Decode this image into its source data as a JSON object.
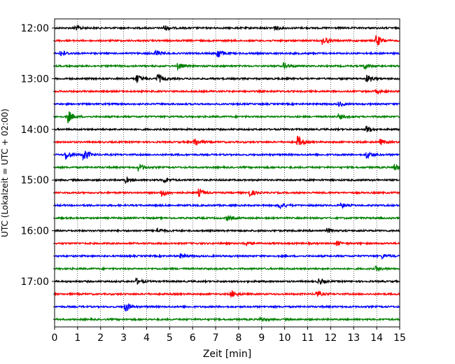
{
  "chart_data": {
    "type": "line",
    "subtype": "seismic-helicorder",
    "xlabel": "Zeit  [min]",
    "ylabel": "UTC (Lokalzeit = UTC + 02:00)",
    "xlim": [
      0,
      15
    ],
    "x_ticks": [
      "0",
      "1",
      "2",
      "3",
      "4",
      "5",
      "6",
      "7",
      "8",
      "9",
      "10",
      "11",
      "12",
      "13",
      "14",
      "15"
    ],
    "y_ticks": [
      {
        "label": "12:00",
        "row": 0
      },
      {
        "label": "13:00",
        "row": 4
      },
      {
        "label": "14:00",
        "row": 8
      },
      {
        "label": "15:00",
        "row": 12
      },
      {
        "label": "16:00",
        "row": 16
      },
      {
        "label": "17:00",
        "row": 20
      }
    ],
    "grid": {
      "vertical_dotted": true
    },
    "row_minutes": 15,
    "row_colors": [
      "#000000",
      "#ff0000",
      "#0000ff",
      "#008000"
    ],
    "series": [
      {
        "start": "12:00",
        "events": [
          {
            "t": 0.9,
            "a": 0.35
          },
          {
            "t": 4.8,
            "a": 0.35
          },
          {
            "t": 9.6,
            "a": 0.3
          }
        ]
      },
      {
        "start": "12:15",
        "events": [
          {
            "t": 11.7,
            "a": 0.5
          },
          {
            "t": 14.0,
            "a": 0.9
          }
        ]
      },
      {
        "start": "12:30",
        "events": [
          {
            "t": 0.3,
            "a": 0.45
          },
          {
            "t": 4.4,
            "a": 0.5
          },
          {
            "t": 7.1,
            "a": 0.75
          }
        ]
      },
      {
        "start": "12:45",
        "events": [
          {
            "t": 5.4,
            "a": 0.45
          },
          {
            "t": 10.0,
            "a": 0.45
          },
          {
            "t": 13.5,
            "a": 0.35
          }
        ]
      },
      {
        "start": "13:00",
        "events": [
          {
            "t": 3.6,
            "a": 0.6
          },
          {
            "t": 4.5,
            "a": 0.7
          },
          {
            "t": 13.6,
            "a": 0.5
          }
        ]
      },
      {
        "start": "13:15",
        "events": [
          {
            "t": 14.0,
            "a": 0.25
          }
        ]
      },
      {
        "start": "13:30",
        "events": [
          {
            "t": 12.4,
            "a": 0.3
          }
        ]
      },
      {
        "start": "13:45",
        "events": [
          {
            "t": 0.6,
            "a": 0.9
          },
          {
            "t": 12.4,
            "a": 0.3
          }
        ]
      },
      {
        "start": "14:00",
        "events": [
          {
            "t": 13.6,
            "a": 0.5
          }
        ]
      },
      {
        "start": "14:15",
        "events": [
          {
            "t": 6.1,
            "a": 0.6
          },
          {
            "t": 10.6,
            "a": 0.8
          },
          {
            "t": 14.2,
            "a": 0.35
          }
        ]
      },
      {
        "start": "14:30",
        "events": [
          {
            "t": 0.5,
            "a": 0.75
          },
          {
            "t": 1.3,
            "a": 0.8
          },
          {
            "t": 13.6,
            "a": 0.55
          }
        ]
      },
      {
        "start": "14:45",
        "events": [
          {
            "t": 3.7,
            "a": 0.5
          },
          {
            "t": 14.8,
            "a": 0.5
          }
        ]
      },
      {
        "start": "15:00",
        "events": [
          {
            "t": 3.1,
            "a": 0.35
          },
          {
            "t": 4.8,
            "a": 0.35
          }
        ]
      },
      {
        "start": "15:15",
        "events": [
          {
            "t": 4.7,
            "a": 0.55
          },
          {
            "t": 6.3,
            "a": 0.5
          },
          {
            "t": 8.5,
            "a": 0.45
          }
        ]
      },
      {
        "start": "15:30",
        "events": [
          {
            "t": 9.8,
            "a": 0.55
          },
          {
            "t": 12.5,
            "a": 0.3
          }
        ]
      },
      {
        "start": "15:45",
        "events": [
          {
            "t": 7.5,
            "a": 0.35
          }
        ]
      },
      {
        "start": "16:00",
        "events": [
          {
            "t": 4.5,
            "a": 0.35
          },
          {
            "t": 11.9,
            "a": 0.3
          }
        ]
      },
      {
        "start": "16:15",
        "events": [
          {
            "t": 8.3,
            "a": 0.35
          },
          {
            "t": 12.3,
            "a": 0.3
          }
        ]
      },
      {
        "start": "16:30",
        "events": [
          {
            "t": 5.5,
            "a": 0.3
          },
          {
            "t": 14.3,
            "a": 0.3
          }
        ]
      },
      {
        "start": "16:45",
        "events": [
          {
            "t": 14.0,
            "a": 0.3
          }
        ]
      },
      {
        "start": "17:00",
        "events": [
          {
            "t": 3.6,
            "a": 0.35
          },
          {
            "t": 11.5,
            "a": 0.4
          }
        ]
      },
      {
        "start": "17:15",
        "events": [
          {
            "t": 7.7,
            "a": 0.5
          },
          {
            "t": 11.4,
            "a": 0.45
          }
        ]
      },
      {
        "start": "17:30",
        "events": [
          {
            "t": 3.1,
            "a": 0.7
          }
        ]
      },
      {
        "start": "17:45",
        "events": [
          {
            "t": 9.0,
            "a": 0.25
          }
        ]
      }
    ]
  }
}
